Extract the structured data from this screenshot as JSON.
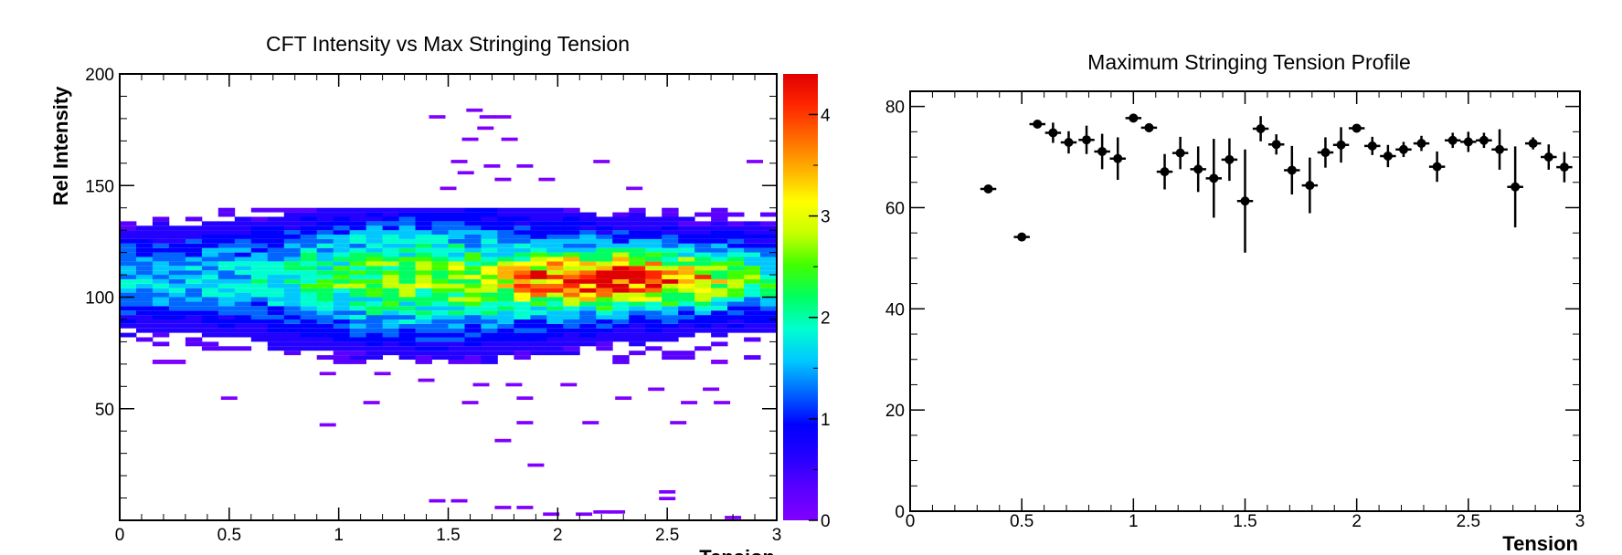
{
  "chart_data": [
    {
      "type": "heatmap",
      "title": "CFT Intensity vs Max Stringing Tension",
      "xlabel": "Tension",
      "ylabel": "Rel Intensity",
      "xlim": [
        0,
        3
      ],
      "ylim": [
        0,
        200
      ],
      "x_ticks": [
        "0",
        "0.5",
        "1",
        "1.5",
        "2",
        "2.5",
        "3"
      ],
      "y_ticks": [
        "50",
        "100",
        "150",
        "200"
      ],
      "colorbar": {
        "range": [
          0,
          4.4
        ],
        "ticks": [
          "0",
          "1",
          "2",
          "3",
          "4"
        ],
        "palette": [
          "#8000ff",
          "#5a00ff",
          "#2400ff",
          "#0000ff",
          "#0066ff",
          "#00c8ff",
          "#00ffd0",
          "#00ff60",
          "#40ff00",
          "#c8ff00",
          "#ffff00",
          "#ffb000",
          "#ff6a00",
          "#ff2600",
          "#e00000"
        ]
      },
      "peak": {
        "x": 2.27,
        "y": 108,
        "value": 4.4
      },
      "core": {
        "y_center": 108,
        "y_min": 70,
        "y_max": 140,
        "x_min": 0,
        "x_max": 3
      },
      "sparse_cells": [
        [
          1.45,
          180
        ],
        [
          1.62,
          183
        ],
        [
          1.68,
          180
        ],
        [
          1.75,
          180
        ],
        [
          1.67,
          175
        ],
        [
          1.78,
          170
        ],
        [
          1.6,
          170
        ],
        [
          1.55,
          160
        ],
        [
          1.7,
          158
        ],
        [
          1.85,
          158
        ],
        [
          2.2,
          160
        ],
        [
          2.9,
          160
        ],
        [
          1.58,
          155
        ],
        [
          1.75,
          152
        ],
        [
          1.95,
          152
        ],
        [
          1.5,
          148
        ],
        [
          2.35,
          148
        ],
        [
          0.95,
          65
        ],
        [
          1.2,
          65
        ],
        [
          1.4,
          62
        ],
        [
          1.65,
          60
        ],
        [
          1.8,
          60
        ],
        [
          2.05,
          60
        ],
        [
          2.45,
          58
        ],
        [
          2.7,
          58
        ],
        [
          0.5,
          54
        ],
        [
          1.15,
          52
        ],
        [
          1.6,
          52
        ],
        [
          1.85,
          54
        ],
        [
          2.3,
          54
        ],
        [
          2.6,
          52
        ],
        [
          2.75,
          52
        ],
        [
          0.95,
          42
        ],
        [
          1.85,
          43
        ],
        [
          2.15,
          43
        ],
        [
          2.55,
          43
        ],
        [
          1.75,
          35
        ],
        [
          1.9,
          24
        ],
        [
          1.45,
          8
        ],
        [
          1.55,
          8
        ],
        [
          1.75,
          5
        ],
        [
          1.85,
          5
        ],
        [
          2.5,
          12
        ],
        [
          2.5,
          9
        ],
        [
          1.97,
          2
        ],
        [
          2.12,
          2
        ],
        [
          2.2,
          3
        ],
        [
          2.27,
          3
        ],
        [
          2.8,
          0.5
        ]
      ]
    },
    {
      "type": "scatter",
      "title": "Maximum Stringing Tension Profile",
      "xlabel": "Tension",
      "ylabel": "",
      "xlim": [
        0,
        3
      ],
      "ylim": [
        0,
        83
      ],
      "x_ticks": [
        "0",
        "0.5",
        "1",
        "1.5",
        "2",
        "2.5",
        "3"
      ],
      "y_ticks": [
        "0",
        "20",
        "40",
        "60",
        "80"
      ],
      "points": [
        {
          "x": 0.35,
          "y": 63.7,
          "err": 0.6
        },
        {
          "x": 0.5,
          "y": 54.2,
          "err": 0.6
        },
        {
          "x": 0.57,
          "y": 76.5,
          "err": 0.8
        },
        {
          "x": 0.64,
          "y": 74.8,
          "err": 2.0
        },
        {
          "x": 0.71,
          "y": 72.9,
          "err": 2.2
        },
        {
          "x": 0.79,
          "y": 73.4,
          "err": 2.8
        },
        {
          "x": 0.86,
          "y": 71.1,
          "err": 3.5
        },
        {
          "x": 0.93,
          "y": 69.7,
          "err": 4.2
        },
        {
          "x": 1.0,
          "y": 77.7,
          "err": 0.6
        },
        {
          "x": 1.07,
          "y": 75.8,
          "err": 0.9
        },
        {
          "x": 1.14,
          "y": 67.1,
          "err": 3.5
        },
        {
          "x": 1.21,
          "y": 70.8,
          "err": 3.2
        },
        {
          "x": 1.29,
          "y": 67.6,
          "err": 4.5
        },
        {
          "x": 1.36,
          "y": 65.8,
          "err": 7.8
        },
        {
          "x": 1.43,
          "y": 69.5,
          "err": 4.2
        },
        {
          "x": 1.5,
          "y": 61.3,
          "err": 10.2
        },
        {
          "x": 1.57,
          "y": 75.6,
          "err": 2.5
        },
        {
          "x": 1.64,
          "y": 72.5,
          "err": 2.0
        },
        {
          "x": 1.71,
          "y": 67.4,
          "err": 4.8
        },
        {
          "x": 1.79,
          "y": 64.4,
          "err": 5.5
        },
        {
          "x": 1.86,
          "y": 70.9,
          "err": 3.0
        },
        {
          "x": 1.93,
          "y": 72.4,
          "err": 3.5
        },
        {
          "x": 2.0,
          "y": 75.7,
          "err": 0.8
        },
        {
          "x": 2.07,
          "y": 72.2,
          "err": 1.8
        },
        {
          "x": 2.14,
          "y": 70.2,
          "err": 2.2
        },
        {
          "x": 2.21,
          "y": 71.5,
          "err": 1.5
        },
        {
          "x": 2.29,
          "y": 72.7,
          "err": 1.5
        },
        {
          "x": 2.36,
          "y": 68.1,
          "err": 3.0
        },
        {
          "x": 2.43,
          "y": 73.3,
          "err": 1.5
        },
        {
          "x": 2.5,
          "y": 73.0,
          "err": 2.0
        },
        {
          "x": 2.57,
          "y": 73.3,
          "err": 1.5
        },
        {
          "x": 2.64,
          "y": 71.5,
          "err": 4.0
        },
        {
          "x": 2.71,
          "y": 64.1,
          "err": 8.0
        },
        {
          "x": 2.79,
          "y": 72.7,
          "err": 1.2
        },
        {
          "x": 2.86,
          "y": 70.0,
          "err": 2.5
        },
        {
          "x": 2.93,
          "y": 68.0,
          "err": 3.0
        }
      ]
    }
  ]
}
